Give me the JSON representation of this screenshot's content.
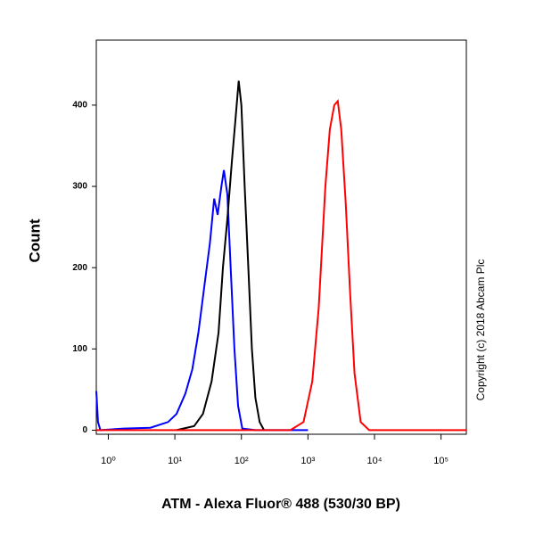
{
  "chart_data": {
    "type": "line",
    "x_label": "ATM - Alexa Fluor® 488 (530/30 BP)",
    "y_label": "Count",
    "annotation": "Copyright (c) 2018 Abcam Plc",
    "xscale": "log",
    "xlim": [
      0.66,
      240000
    ],
    "ylim": [
      -5,
      480
    ],
    "xticks": [
      {
        "value": 1,
        "label": "10⁰"
      },
      {
        "value": 10,
        "label": "10¹"
      },
      {
        "value": 100,
        "label": "10²"
      },
      {
        "value": 1000,
        "label": "10³"
      },
      {
        "value": 10000,
        "label": "10⁴"
      },
      {
        "value": 100000,
        "label": "10⁵"
      }
    ],
    "yticks": [
      0,
      100,
      200,
      300,
      400
    ],
    "series": [
      {
        "color": "#0000ff",
        "x": [
          0.66,
          0.7,
          0.76,
          1.7,
          4.3,
          7.9,
          10.6,
          14.4,
          18.3,
          22.6,
          28,
          33.6,
          39,
          44,
          50,
          54.6,
          61.6,
          69,
          78.5,
          89,
          103,
          162,
          1000
        ],
        "values": [
          48,
          10,
          0,
          2,
          3,
          10,
          20,
          45,
          75,
          120,
          180,
          230,
          285,
          265,
          300,
          320,
          290,
          200,
          100,
          30,
          2,
          0,
          0
        ]
      },
      {
        "color": "#000000",
        "x": [
          10.6,
          19.5,
          26.4,
          35.7,
          45.3,
          52.8,
          61.6,
          71.8,
          81,
          91,
          100,
          112,
          127,
          144,
          162,
          188,
          219
        ],
        "values": [
          0,
          5,
          20,
          60,
          120,
          200,
          260,
          330,
          380,
          430,
          400,
          300,
          200,
          100,
          40,
          10,
          0
        ]
      },
      {
        "color": "#ff0000",
        "x": [
          0.66,
          546,
          858,
          1160,
          1450,
          1830,
          2130,
          2490,
          2810,
          3160,
          3690,
          4290,
          5010,
          6200,
          8300,
          240000
        ],
        "values": [
          0,
          0,
          10,
          60,
          150,
          300,
          370,
          400,
          405,
          370,
          280,
          170,
          70,
          10,
          0,
          0
        ]
      }
    ]
  }
}
